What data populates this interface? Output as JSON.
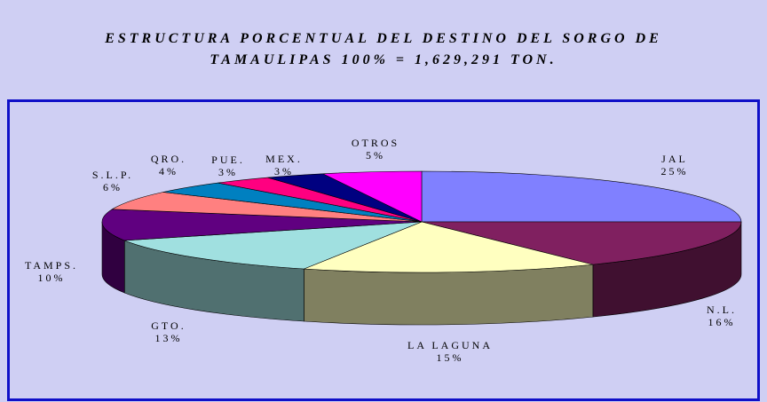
{
  "chart_data": {
    "type": "pie",
    "title_lines": [
      "ESTRUCTURA PORCENTUAL DEL DESTINO DEL SORGO DE",
      "TAMAULIPAS 100% = 1,629,291 TON."
    ],
    "categories": [
      "JAL",
      "N.L.",
      "LA LAGUNA",
      "GTO.",
      "TAMPS.",
      "S.L.P.",
      "QRO.",
      "PUE.",
      "MEX.",
      "OTROS"
    ],
    "values": [
      25,
      16,
      15,
      13,
      10,
      6,
      4,
      3,
      3,
      5
    ],
    "value_labels": [
      "25%",
      "16%",
      "15%",
      "13%",
      "10%",
      "6%",
      "4%",
      "3%",
      "3%",
      "5%"
    ],
    "colors": [
      "#8080ff",
      "#802060",
      "#ffffc0",
      "#a0e0e0",
      "#600080",
      "#ff8080",
      "#0080c0",
      "#ff0080",
      "#000080",
      "#ff00ff"
    ]
  }
}
